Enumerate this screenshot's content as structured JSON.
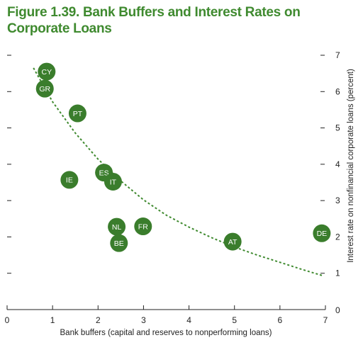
{
  "figure": {
    "title": "Figure 1.39. Bank Buffers and Interest Rates on Corporate Loans"
  },
  "chart_data": {
    "type": "scatter",
    "title": "Figure 1.39. Bank Buffers and Interest Rates on Corporate Loans",
    "xlabel": "Bank buffers (capital and reserves to nonperforming loans)",
    "ylabel": "Interest rate on nonfinancial corporate loans (percent)",
    "xlim": [
      0,
      7
    ],
    "ylim": [
      0,
      7
    ],
    "x_ticks": [
      0,
      1,
      2,
      3,
      4,
      5,
      6,
      7
    ],
    "y_ticks": [
      1,
      2,
      3,
      4,
      5,
      6,
      7
    ],
    "y_tick_labels": [
      "1",
      "2",
      "3",
      "4",
      "5",
      "6",
      "7"
    ],
    "y_axis_side": "right",
    "grid": false,
    "legend": "none",
    "colors": {
      "title": "#3f8a2f",
      "marker": "#3a7d2c",
      "trend": "#3f8a2f",
      "axis": "#222222"
    },
    "points": [
      {
        "label": "CY",
        "x": 0.87,
        "y": 6.55
      },
      {
        "label": "GR",
        "x": 0.83,
        "y": 6.08
      },
      {
        "label": "PT",
        "x": 1.55,
        "y": 5.4
      },
      {
        "label": "IE",
        "x": 1.37,
        "y": 3.57
      },
      {
        "label": "ES",
        "x": 2.13,
        "y": 3.77
      },
      {
        "label": "IT",
        "x": 2.33,
        "y": 3.52
      },
      {
        "label": "NL",
        "x": 2.41,
        "y": 2.28
      },
      {
        "label": "FR",
        "x": 2.99,
        "y": 2.29
      },
      {
        "label": "BE",
        "x": 2.46,
        "y": 1.83
      },
      {
        "label": "AT",
        "x": 4.96,
        "y": 1.87
      },
      {
        "label": "DE",
        "x": 6.92,
        "y": 2.1
      }
    ],
    "trendline": {
      "style": "dashed",
      "x": [
        0.58,
        1.0,
        1.5,
        2.0,
        2.5,
        3.0,
        3.5,
        4.0,
        4.5,
        5.0,
        5.5,
        6.0,
        6.5,
        6.95
      ],
      "y": [
        6.65,
        5.72,
        4.86,
        4.14,
        3.54,
        3.02,
        2.6,
        2.27,
        1.98,
        1.72,
        1.5,
        1.3,
        1.1,
        0.93
      ]
    }
  }
}
